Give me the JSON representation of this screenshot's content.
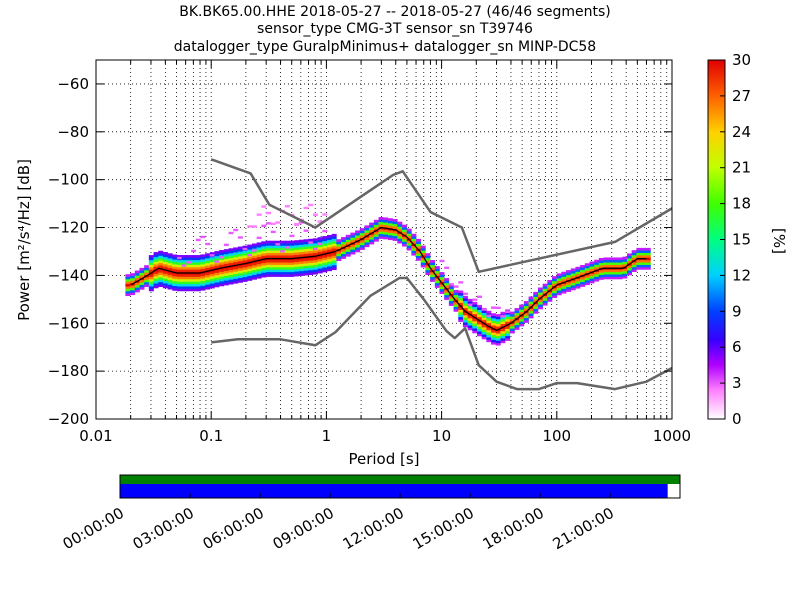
{
  "chart_data": {
    "type": "heatmap",
    "title_lines": [
      "BK.BK65.00.HHE   2018-05-27 -- 2018-05-27  (46/46 segments)",
      "sensor_type CMG-3T sensor_sn T39746",
      "datalogger_type GuralpMinimus+ datalogger_sn MINP-DC58"
    ],
    "xlabel": "Period [s]",
    "ylabel": "Power [m²/s⁴/Hz] [dB]",
    "x_scale": "log",
    "xlim": [
      0.01,
      1000
    ],
    "ylim": [
      -200,
      -50
    ],
    "x_ticks": [
      0.01,
      0.1,
      1,
      10,
      100,
      1000
    ],
    "x_tick_labels": [
      "0.01",
      "0.1",
      "1",
      "10",
      "100",
      "1000"
    ],
    "y_ticks": [
      -200,
      -180,
      -160,
      -140,
      -120,
      -100,
      -80,
      -60
    ],
    "y_tick_labels": [
      "−200",
      "−180",
      "−160",
      "−140",
      "−120",
      "−100",
      "−80",
      "−60"
    ],
    "grid": "dotted",
    "colorbar": {
      "label": "[%]",
      "range": [
        0,
        30
      ],
      "ticks": [
        0,
        3,
        6,
        9,
        12,
        15,
        18,
        21,
        24,
        27,
        30
      ],
      "tick_labels": [
        "0",
        "3",
        "6",
        "9",
        "12",
        "15",
        "18",
        "21",
        "24",
        "27",
        "30"
      ],
      "colormap": "pqlx"
    },
    "noise_model_high": {
      "x": [
        0.1,
        0.22,
        0.32,
        0.8,
        3.8,
        4.6,
        8,
        15,
        21,
        320,
        1000
      ],
      "y": [
        -91.5,
        -97.4,
        -110.5,
        -120,
        -98,
        -96.5,
        -113.5,
        -120,
        -138.5,
        -126,
        -112
      ]
    },
    "noise_model_low": {
      "x": [
        0.1,
        0.17,
        0.4,
        0.8,
        1.2,
        2.4,
        4.3,
        5.0,
        7.0,
        11,
        13,
        16,
        21,
        30,
        45,
        70,
        100,
        150,
        320,
        600,
        1000
      ],
      "y": [
        -168,
        -166.7,
        -166.7,
        -169.2,
        -163.7,
        -148.6,
        -141.1,
        -141.1,
        -150,
        -163.2,
        -166.2,
        -162.1,
        -177.5,
        -184.4,
        -187.5,
        -187.5,
        -185,
        -185,
        -187.5,
        -184.4,
        -178.7
      ]
    },
    "mean_psd": {
      "x": [
        0.02,
        0.028,
        0.035,
        0.05,
        0.08,
        0.12,
        0.2,
        0.3,
        0.5,
        0.8,
        1.2,
        2.0,
        3.0,
        4.0,
        5.0,
        6.5,
        8.0,
        10,
        13,
        16,
        20,
        25,
        30,
        40,
        55,
        70,
        100,
        150,
        250,
        380,
        500,
        600
      ],
      "y": [
        -144,
        -140,
        -137,
        -139,
        -139,
        -137,
        -135,
        -133,
        -133,
        -132,
        -130,
        -125,
        -120,
        -121,
        -124,
        -130,
        -137,
        -143,
        -150,
        -155,
        -158,
        -161,
        -163,
        -160,
        -155,
        -150,
        -144,
        -141,
        -137,
        -137,
        -133,
        -133
      ]
    },
    "timeline": {
      "tick_labels": [
        "00:00:00",
        "03:00:00",
        "06:00:00",
        "09:00:00",
        "12:00:00",
        "15:00:00",
        "18:00:00",
        "21:00:00"
      ],
      "data_coverage_fraction": 1.0,
      "psd_coverage_fraction": 0.978,
      "data_color": "#008000",
      "psd_color": "#0000ff"
    }
  }
}
